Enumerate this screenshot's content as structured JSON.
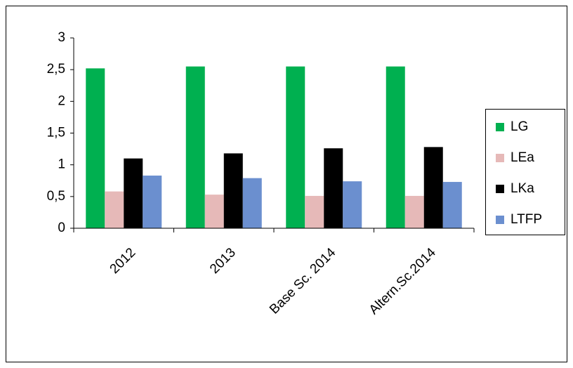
{
  "chart_data": {
    "type": "bar",
    "categories": [
      "2012",
      "2013",
      "Base Sc. 2014",
      "Altern.Sc.2014"
    ],
    "series": [
      {
        "name": "LG",
        "color": "#00b050",
        "values": [
          2.52,
          2.55,
          2.55,
          2.55
        ]
      },
      {
        "name": "LEa",
        "color": "#e6b9b8",
        "values": [
          0.58,
          0.53,
          0.51,
          0.51
        ]
      },
      {
        "name": "LKa",
        "color": "#000000",
        "values": [
          1.1,
          1.18,
          1.26,
          1.28
        ]
      },
      {
        "name": "LTFP",
        "color": "#6b8fcf",
        "values": [
          0.83,
          0.79,
          0.74,
          0.73
        ]
      }
    ],
    "ylim": [
      0,
      3
    ],
    "yticks": [
      0,
      {
        "value": 0.5,
        "label": "0,5"
      },
      1,
      {
        "value": 1.5,
        "label": "1,5"
      },
      2,
      {
        "value": 2.5,
        "label": "2,5"
      },
      3
    ],
    "grid": false,
    "legend": "right"
  }
}
